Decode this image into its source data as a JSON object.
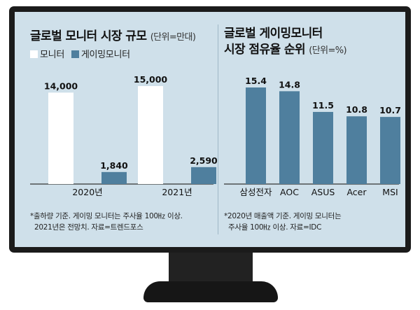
{
  "colors": {
    "monitor": "#ffffff",
    "gaming": "#4f7f9e",
    "background": "#cfe0ea",
    "bezel": "#1b1b1b"
  },
  "left": {
    "title": "글로벌 모니터 시장 규모",
    "unit": "(단위=만대)",
    "legend": [
      "모니터",
      "게이밍모니터"
    ],
    "note_line1": "*출하량 기준. 게이밍 모니터는 주사율 100㎐ 이상.",
    "note_line2": "2021년은 전망치. 자료=트렌드포스"
  },
  "right": {
    "title_line1": "글로벌 게이밍모니터",
    "title_line2": "시장 점유율 순위",
    "unit": "(단위=%)",
    "note_line1": "*2020년 매출액 기준. 게이밍 모니터는",
    "note_line2": "주사율 100㎐ 이상. 자료=IDC"
  },
  "chart_data": [
    {
      "type": "bar",
      "title": "글로벌 모니터 시장 규모",
      "categories": [
        "2020년",
        "2021년"
      ],
      "series": [
        {
          "name": "모니터",
          "values": [
            14000,
            15000
          ],
          "labels": [
            "14,000",
            "15,000"
          ]
        },
        {
          "name": "게이밍모니터",
          "values": [
            1840,
            2590
          ],
          "labels": [
            "1,840",
            "2,590"
          ]
        }
      ],
      "ylim": [
        0,
        15000
      ],
      "legend": "top-left",
      "grid": false
    },
    {
      "type": "bar",
      "title": "글로벌 게이밍모니터 시장 점유율 순위",
      "categories": [
        "삼성전자",
        "AOC",
        "ASUS",
        "Acer",
        "MSI"
      ],
      "values": [
        15.4,
        14.8,
        11.5,
        10.8,
        10.7
      ],
      "labels": [
        "15.4",
        "14.8",
        "11.5",
        "10.8",
        "10.7"
      ],
      "ylim": [
        0,
        15.4
      ],
      "grid": false
    }
  ]
}
